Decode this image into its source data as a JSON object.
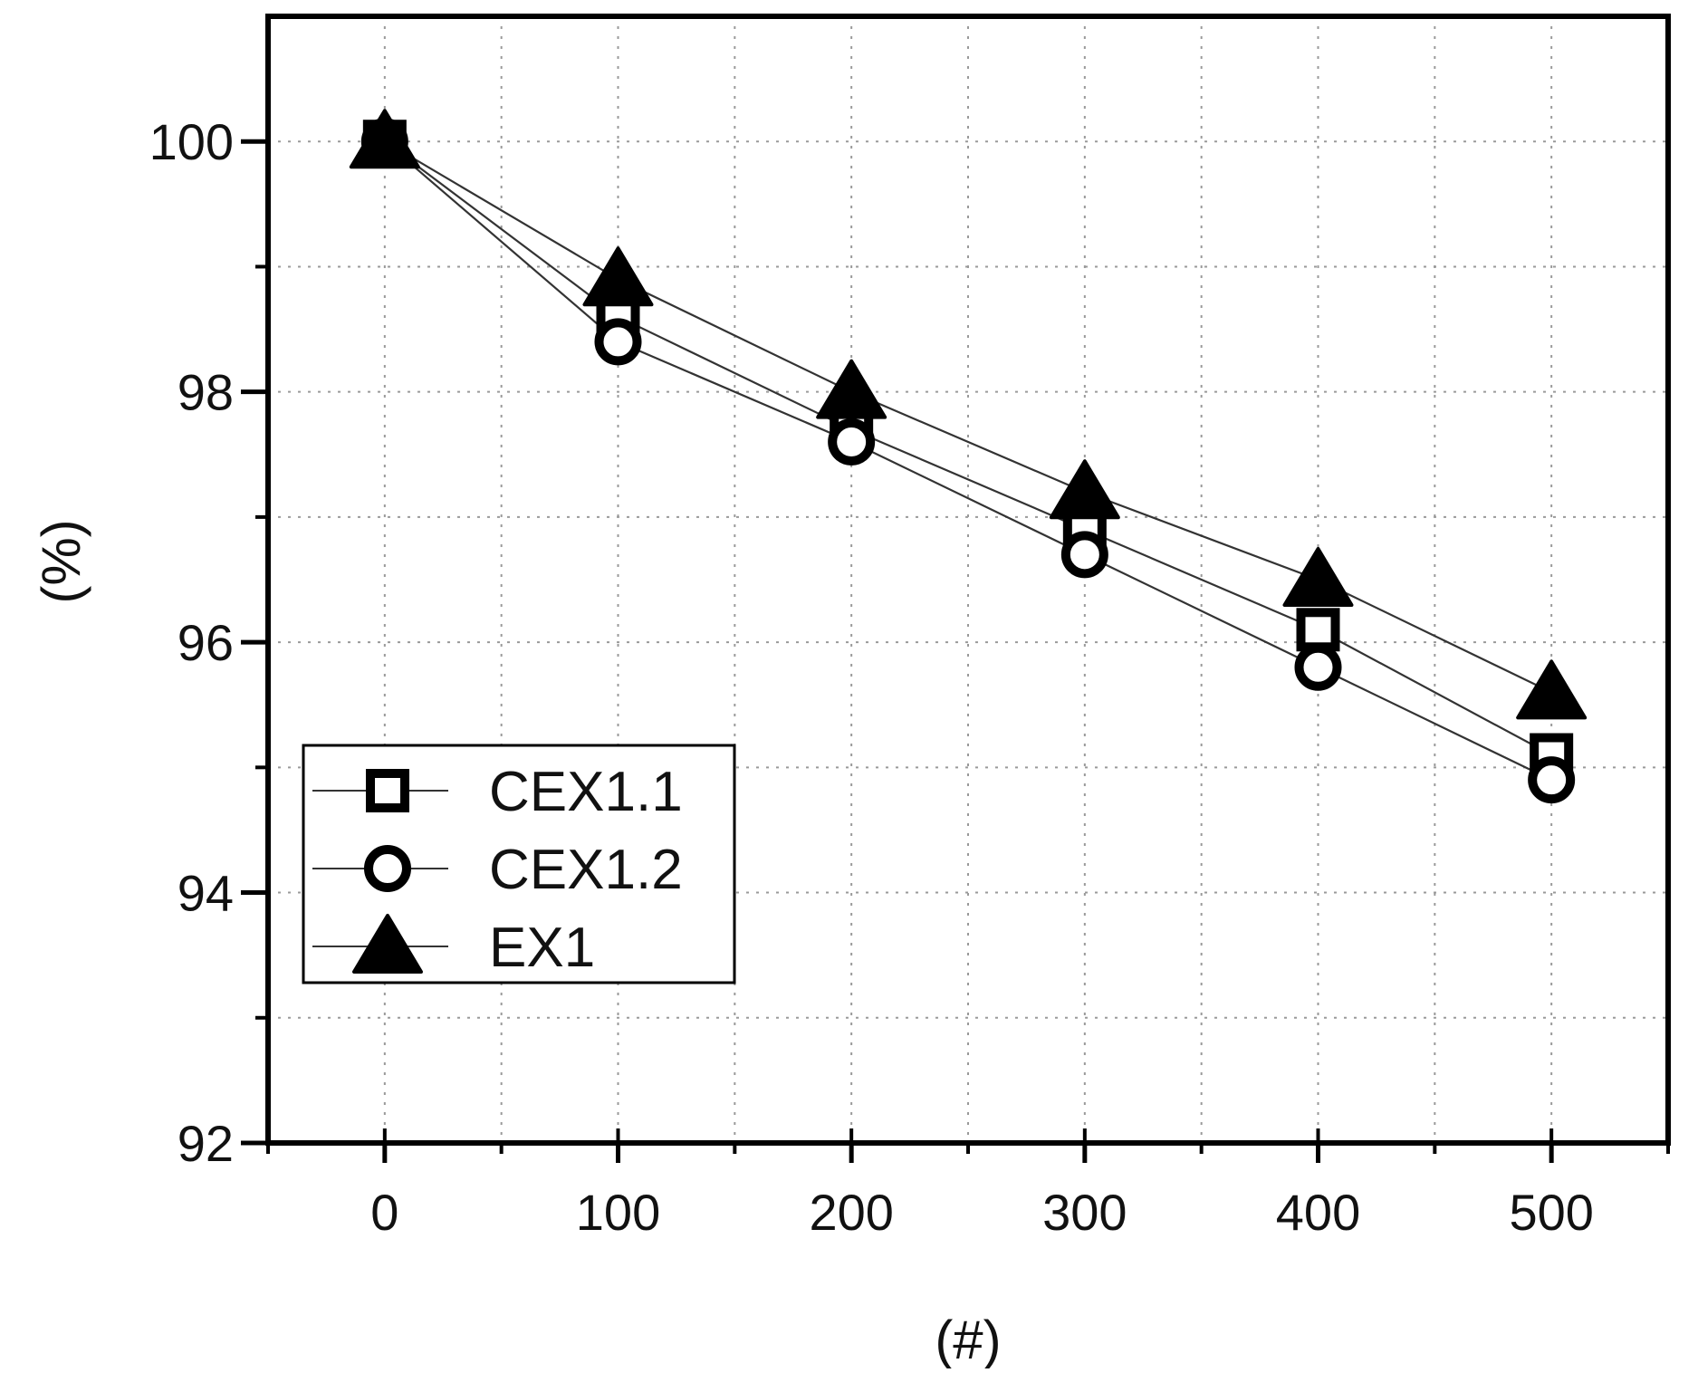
{
  "chart_data": {
    "type": "line",
    "title": "",
    "xlabel": "(#)",
    "ylabel": "(%)",
    "x": [
      0,
      100,
      200,
      300,
      400,
      500
    ],
    "xlim": [
      -50,
      550
    ],
    "ylim": [
      92,
      101
    ],
    "x_ticks": [
      0,
      100,
      200,
      300,
      400,
      500
    ],
    "x_tick_labels": [
      "0",
      "100",
      "200",
      "300",
      "400",
      "500"
    ],
    "y_ticks": [
      92,
      94,
      96,
      98,
      100
    ],
    "y_tick_labels": [
      "92",
      "94",
      "96",
      "98",
      "100"
    ],
    "grid": true,
    "legend_position": "lower-left",
    "series": [
      {
        "name": "CEX1.1",
        "marker": "open-square",
        "values": [
          100,
          98.6,
          97.7,
          96.9,
          96.1,
          95.1
        ]
      },
      {
        "name": "CEX1.2",
        "marker": "open-circle",
        "values": [
          100,
          98.4,
          97.6,
          96.7,
          95.8,
          94.9
        ]
      },
      {
        "name": "EX1",
        "marker": "filled-triangle",
        "values": [
          100,
          98.9,
          98.0,
          97.2,
          96.5,
          95.6
        ]
      }
    ],
    "colors": {
      "marker": "#000000",
      "line": "#333333",
      "grid": "#9a9a9a",
      "frame": "#000000"
    }
  }
}
